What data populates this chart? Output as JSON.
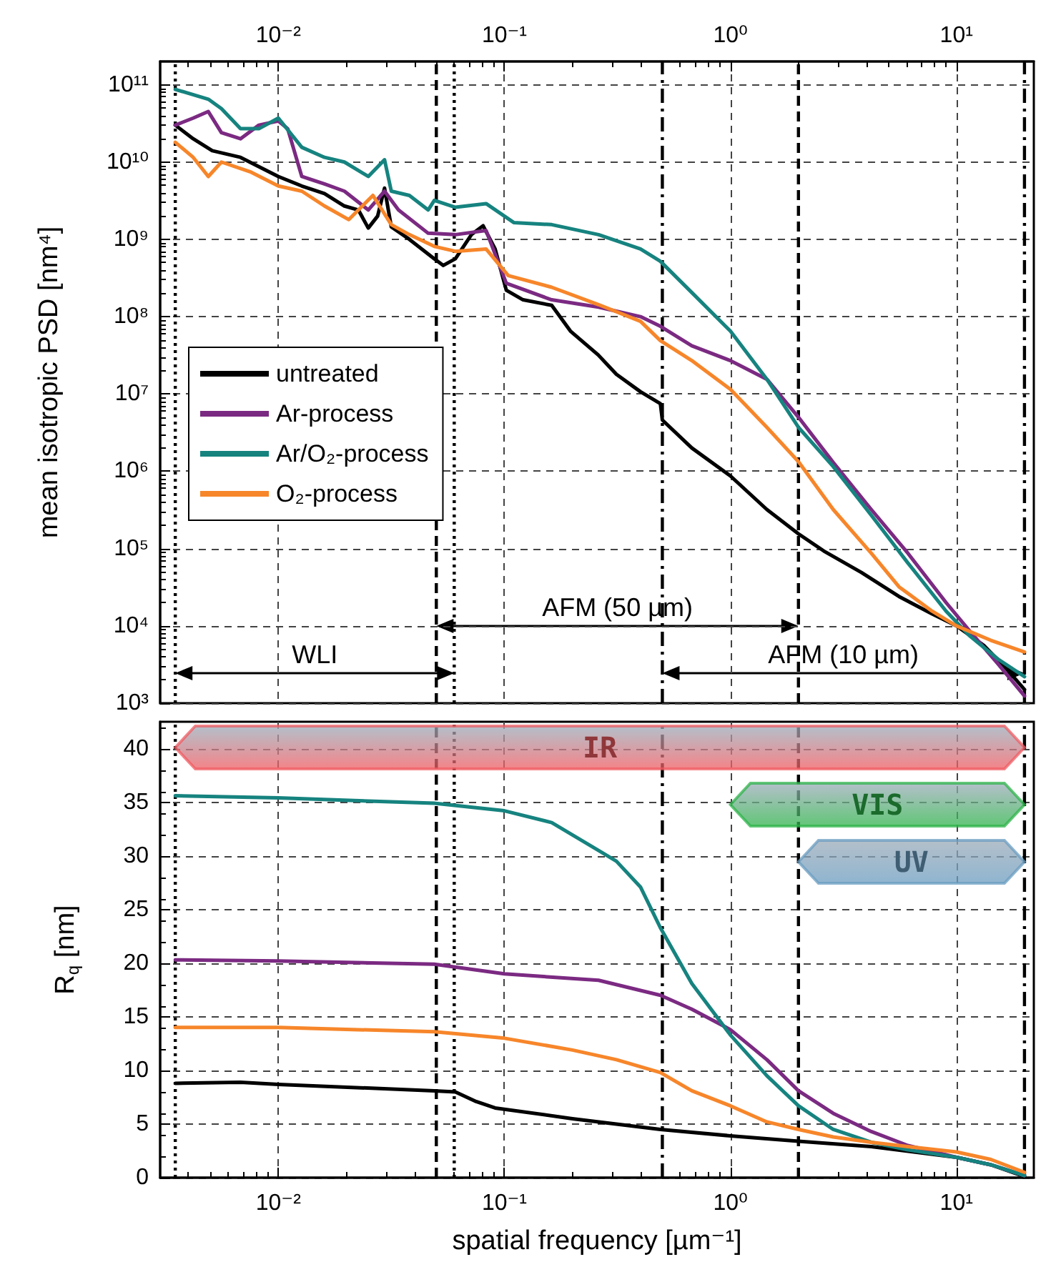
{
  "chart_data": [
    {
      "type": "line",
      "ylabel": "mean isotropic PSD [nm⁴]",
      "log": "xy",
      "grid": true,
      "legend": "left",
      "marker": "none",
      "xlim": [
        0.003,
        22
      ],
      "xticks": [
        {
          "value": 0.01,
          "label": "10⁻²"
        },
        {
          "value": 0.1,
          "label": "10⁻¹"
        },
        {
          "value": 1,
          "label": "10⁰"
        },
        {
          "value": 10,
          "label": "10¹"
        }
      ],
      "ylim": [
        1000,
        200000000000
      ],
      "yticks": [
        {
          "value": 1000,
          "label": "10³"
        },
        {
          "value": 10000,
          "label": "10⁴"
        },
        {
          "value": 100000,
          "label": "10⁵"
        },
        {
          "value": 1000000,
          "label": "10⁶"
        },
        {
          "value": 10000000,
          "label": "10⁷"
        },
        {
          "value": 100000000,
          "label": "10⁸"
        },
        {
          "value": 1000000000,
          "label": "10⁹"
        },
        {
          "value": 10000000000,
          "label": "10¹⁰"
        },
        {
          "value": 100000000000,
          "label": "10¹¹"
        }
      ],
      "series": [
        {
          "name": "untreated",
          "color": "#000000",
          "x": [
            0.0035,
            0.0042,
            0.0051,
            0.0068,
            0.01,
            0.0127,
            0.016,
            0.0196,
            0.0226,
            0.025,
            0.0275,
            0.0295,
            0.0316,
            0.038,
            0.049,
            0.0537,
            0.0607,
            0.0715,
            0.0805,
            0.091,
            0.102,
            0.121,
            0.162,
            0.196,
            0.26,
            0.313,
            0.4,
            0.49,
            0.5,
            0.675,
            1.0,
            1.45,
            2.0,
            2.59,
            3.8,
            5.57,
            7.8,
            10,
            13.2,
            16.8,
            20
          ],
          "values": [
            30000000000.0,
            20000000000.0,
            14000000000.0,
            11500000000.0,
            6500000000.0,
            4900000000.0,
            3900000000.0,
            2700000000.0,
            2400000000.0,
            1400000000.0,
            2000000000.0,
            4600000000.0,
            1450000000.0,
            1000000000.0,
            560000000.0,
            460000000.0,
            560000000.0,
            1150000000.0,
            1500000000.0,
            750000000.0,
            220000000.0,
            165000000.0,
            140000000.0,
            65000000.0,
            32000000.0,
            18000000.0,
            10700000.0,
            7500000.0,
            4600000.0,
            2000000.0,
            870000.0,
            320000.0,
            155000.0,
            93000.0,
            49000.0,
            24000.0,
            14300.0,
            10000.0,
            5600.0,
            2700.0,
            1500.0
          ]
        },
        {
          "name": "Ar-process",
          "color": "#7b2a82",
          "x": [
            0.0035,
            0.0042,
            0.0049,
            0.0056,
            0.0068,
            0.0082,
            0.01,
            0.011,
            0.0127,
            0.016,
            0.0196,
            0.025,
            0.0295,
            0.034,
            0.046,
            0.0607,
            0.083,
            0.102,
            0.162,
            0.261,
            0.4,
            0.49,
            0.675,
            1.0,
            1.45,
            2.0,
            2.85,
            4.2,
            6.1,
            9,
            11.4,
            15.3,
            20
          ],
          "values": [
            30000000000.0,
            37000000000.0,
            45000000000.0,
            24000000000.0,
            20000000000.0,
            30000000000.0,
            34000000000.0,
            27000000000.0,
            6500000000.0,
            5200000000.0,
            4200000000.0,
            2400000000.0,
            4200000000.0,
            2400000000.0,
            1200000000.0,
            1150000000.0,
            1300000000.0,
            270000000.0,
            165000000.0,
            133000000.0,
            100000000.0,
            75000000.0,
            42000000.0,
            27000000.0,
            15500000.0,
            5000000.0,
            1300000.0,
            320000.0,
            87000.0,
            20000.0,
            8700.0,
            3200.0,
            1240.0
          ]
        },
        {
          "name": "Ar/O₂-process",
          "color": "#16837f",
          "x": [
            0.0035,
            0.0049,
            0.0056,
            0.0068,
            0.0082,
            0.01,
            0.0127,
            0.016,
            0.0196,
            0.025,
            0.0295,
            0.0316,
            0.038,
            0.046,
            0.049,
            0.0607,
            0.083,
            0.11,
            0.162,
            0.261,
            0.4,
            0.49,
            0.675,
            1.0,
            1.45,
            2.0,
            2.85,
            4.2,
            6.1,
            9,
            11.4,
            15.3,
            20
          ],
          "values": [
            87000000000.0,
            65000000000.0,
            49000000000.0,
            27000000000.0,
            27000000000.0,
            37000000000.0,
            15500000000.0,
            11500000000.0,
            10000000000.0,
            6500000000.0,
            10700000000.0,
            4200000000.0,
            3700000000.0,
            2400000000.0,
            3200000000.0,
            2600000000.0,
            2900000000.0,
            1650000000.0,
            1550000000.0,
            1150000000.0,
            750000000.0,
            520000000.0,
            205000000.0,
            65000000.0,
            15500000.0,
            3700000.0,
            1150000.0,
            270000.0,
            65000.0,
            15500.0,
            7500.0,
            3700.0,
            2200.0
          ]
        },
        {
          "name": "O₂-process",
          "color": "#f7862a",
          "x": [
            0.0035,
            0.0042,
            0.0049,
            0.0056,
            0.0075,
            0.01,
            0.0127,
            0.016,
            0.0205,
            0.0262,
            0.0316,
            0.038,
            0.049,
            0.0607,
            0.083,
            0.104,
            0.162,
            0.261,
            0.4,
            0.49,
            0.675,
            1.0,
            1.45,
            2.0,
            2.85,
            4.2,
            5.57,
            7.8,
            10,
            14.2,
            20
          ],
          "values": [
            18000000000.0,
            11500000000.0,
            6500000000.0,
            10000000000.0,
            7500000000.0,
            4900000000.0,
            4200000000.0,
            2700000000.0,
            1800000000.0,
            3700000000.0,
            1550000000.0,
            1150000000.0,
            810000000.0,
            700000000.0,
            750000000.0,
            340000000.0,
            240000000.0,
            143000000.0,
            87000000.0,
            49000000.0,
            27000000.0,
            11500000.0,
            3700000.0,
            1330000.0,
            320000.0,
            87000.0,
            32000.0,
            15500.0,
            10000.0,
            6500.0,
            4600.0
          ]
        }
      ],
      "ref_lines": [
        {
          "axis": "x",
          "value": 0.0035,
          "line_style": "dotted"
        },
        {
          "axis": "x",
          "value": 0.06,
          "line_style": "dotted"
        },
        {
          "axis": "x",
          "value": 0.05,
          "line_style": "dashed"
        },
        {
          "axis": "x",
          "value": 2,
          "line_style": "dashed"
        },
        {
          "axis": "x",
          "value": 0.5,
          "line_style": "dashdot"
        },
        {
          "axis": "x",
          "value": 20,
          "line_style": "dashdot"
        }
      ],
      "annotations": [
        "WLI",
        "AFM (50 µm)",
        "AFM (10 µm)"
      ]
    },
    {
      "type": "line",
      "xlabel": "spatial frequency [µm⁻¹]",
      "ylabel": "R$_{q}$ [nm]",
      "log": "x",
      "grid": true,
      "marker": "none",
      "xlim": [
        0.003,
        22
      ],
      "xticks": [
        {
          "value": 0.01,
          "label": "10⁻²"
        },
        {
          "value": 0.1,
          "label": "10⁻¹"
        },
        {
          "value": 1,
          "label": "10⁰"
        },
        {
          "value": 10,
          "label": "10¹"
        }
      ],
      "ylim": [
        0,
        42.5
      ],
      "yticks": [
        0,
        5,
        10,
        15,
        20,
        25,
        30,
        35,
        40
      ],
      "series": [
        {
          "color": "#000000",
          "x": [
            0.0035,
            0.0068,
            0.01,
            0.049,
            0.0607,
            0.075,
            0.091,
            0.2,
            0.313,
            0.49,
            1.0,
            2.0,
            4.2,
            10,
            14.2,
            20
          ],
          "values": [
            8.8,
            8.9,
            8.7,
            8.1,
            8.0,
            7.1,
            6.5,
            5.5,
            5.0,
            4.5,
            3.9,
            3.4,
            2.9,
            1.9,
            1.2,
            0.1
          ]
        },
        {
          "color": "#7b2a82",
          "x": [
            0.0035,
            0.01,
            0.049,
            0.1,
            0.261,
            0.49,
            0.675,
            1.0,
            1.45,
            2.0,
            2.85,
            4.2,
            6.1,
            10,
            14.2,
            20
          ],
          "values": [
            20.3,
            20.2,
            19.9,
            19.0,
            18.4,
            17.0,
            15.7,
            13.8,
            11.0,
            8.1,
            6.0,
            4.3,
            3.0,
            1.9,
            1.2,
            0.2
          ]
        },
        {
          "color": "#16837f",
          "x": [
            0.0035,
            0.01,
            0.049,
            0.1,
            0.162,
            0.261,
            0.313,
            0.4,
            0.49,
            0.675,
            1.0,
            1.45,
            2.0,
            2.85,
            4.2,
            6.1,
            10,
            14.2,
            20
          ],
          "values": [
            35.6,
            35.4,
            34.9,
            34.2,
            33.1,
            30.5,
            29.5,
            27.1,
            23.3,
            18.1,
            13.3,
            9.5,
            6.7,
            4.5,
            3.3,
            2.6,
            1.9,
            1.2,
            0.2
          ]
        },
        {
          "color": "#f7862a",
          "x": [
            0.0035,
            0.01,
            0.049,
            0.1,
            0.2,
            0.313,
            0.49,
            0.675,
            1.0,
            1.45,
            2.0,
            2.85,
            4.2,
            6.1,
            10,
            14.2,
            20
          ],
          "values": [
            14.0,
            14.0,
            13.6,
            13.0,
            11.9,
            11.0,
            9.8,
            8.1,
            6.7,
            5.2,
            4.5,
            3.8,
            3.3,
            2.9,
            2.4,
            1.7,
            0.5
          ]
        }
      ],
      "ref_lines": [
        {
          "axis": "x",
          "value": 0.0035,
          "line_style": "dotted"
        },
        {
          "axis": "x",
          "value": 0.06,
          "line_style": "dotted"
        },
        {
          "axis": "x",
          "value": 0.05,
          "line_style": "dashed"
        },
        {
          "axis": "x",
          "value": 2,
          "line_style": "dashed"
        },
        {
          "axis": "x",
          "value": 0.5,
          "line_style": "dashdot"
        },
        {
          "axis": "x",
          "value": 20,
          "line_style": "dashdot"
        }
      ],
      "bands": [
        {
          "axis": "x",
          "from": 0.0035,
          "to": 20,
          "label": "IR",
          "color": "#ef5b61"
        },
        {
          "axis": "x",
          "from": 1,
          "to": 20,
          "label": "VIS",
          "color": "#2db34a"
        },
        {
          "axis": "x",
          "from": 2,
          "to": 20,
          "label": "UV",
          "color": "#6a9cc0"
        }
      ]
    }
  ]
}
